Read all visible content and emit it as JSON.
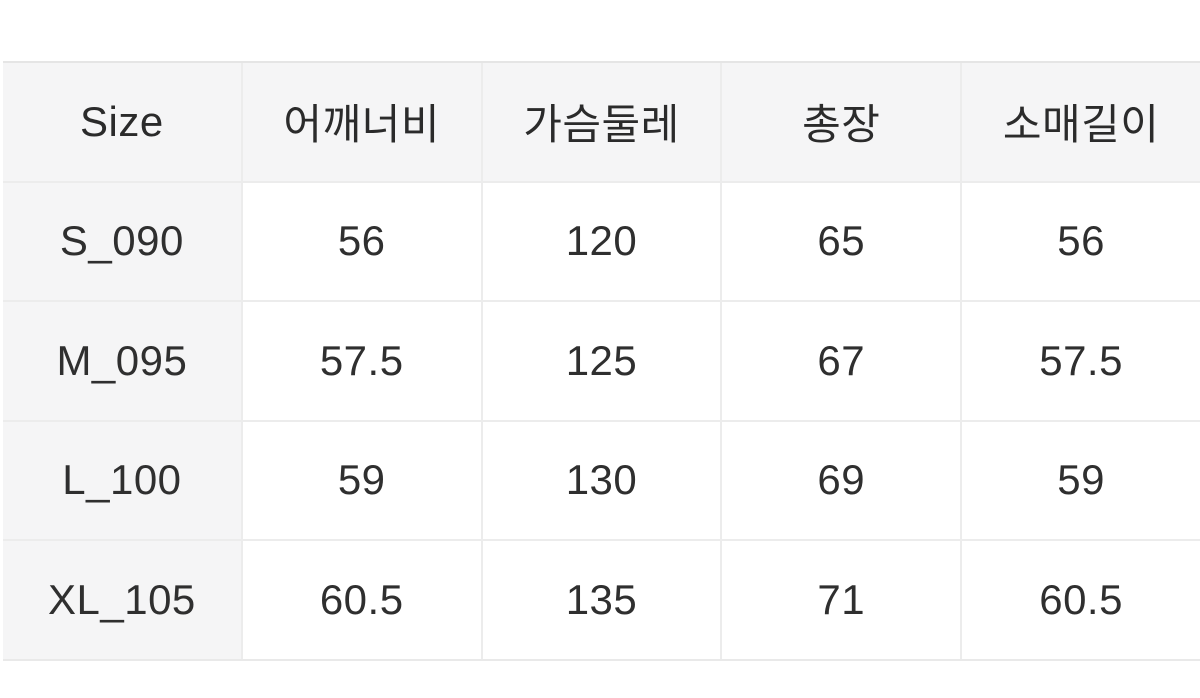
{
  "table": {
    "headers": [
      "Size",
      "어깨너비",
      "가슴둘레",
      "총장",
      "소매길이"
    ],
    "rows": [
      [
        "S_090",
        "56",
        "120",
        "65",
        "56"
      ],
      [
        "M_095",
        "57.5",
        "125",
        "67",
        "57.5"
      ],
      [
        "L_100",
        "59",
        "130",
        "69",
        "59"
      ],
      [
        "XL_105",
        "60.5",
        "135",
        "71",
        "60.5"
      ]
    ]
  },
  "chart_data": {
    "type": "table",
    "title": "",
    "columns": [
      "Size",
      "어깨너비",
      "가슴둘레",
      "총장",
      "소매길이"
    ],
    "rows": [
      {
        "size": "S_090",
        "어깨너비": 56,
        "가슴둘레": 120,
        "총장": 65,
        "소매길이": 56
      },
      {
        "size": "M_095",
        "어깨너비": 57.5,
        "가슴둘레": 125,
        "총장": 67,
        "소매길이": 57.5
      },
      {
        "size": "L_100",
        "어깨너비": 59,
        "가슴둘레": 130,
        "총장": 69,
        "소매길이": 59
      },
      {
        "size": "XL_105",
        "어깨너비": 60.5,
        "가슴둘레": 135,
        "총장": 71,
        "소매길이": 60.5
      }
    ]
  },
  "colors": {
    "header_bg": "#f5f5f6",
    "cell_bg": "#ffffff",
    "grid_line": "#ececec",
    "top_border": "#e5e5e5",
    "text": "#2f2f2f",
    "page_bg": "#ffffff"
  }
}
